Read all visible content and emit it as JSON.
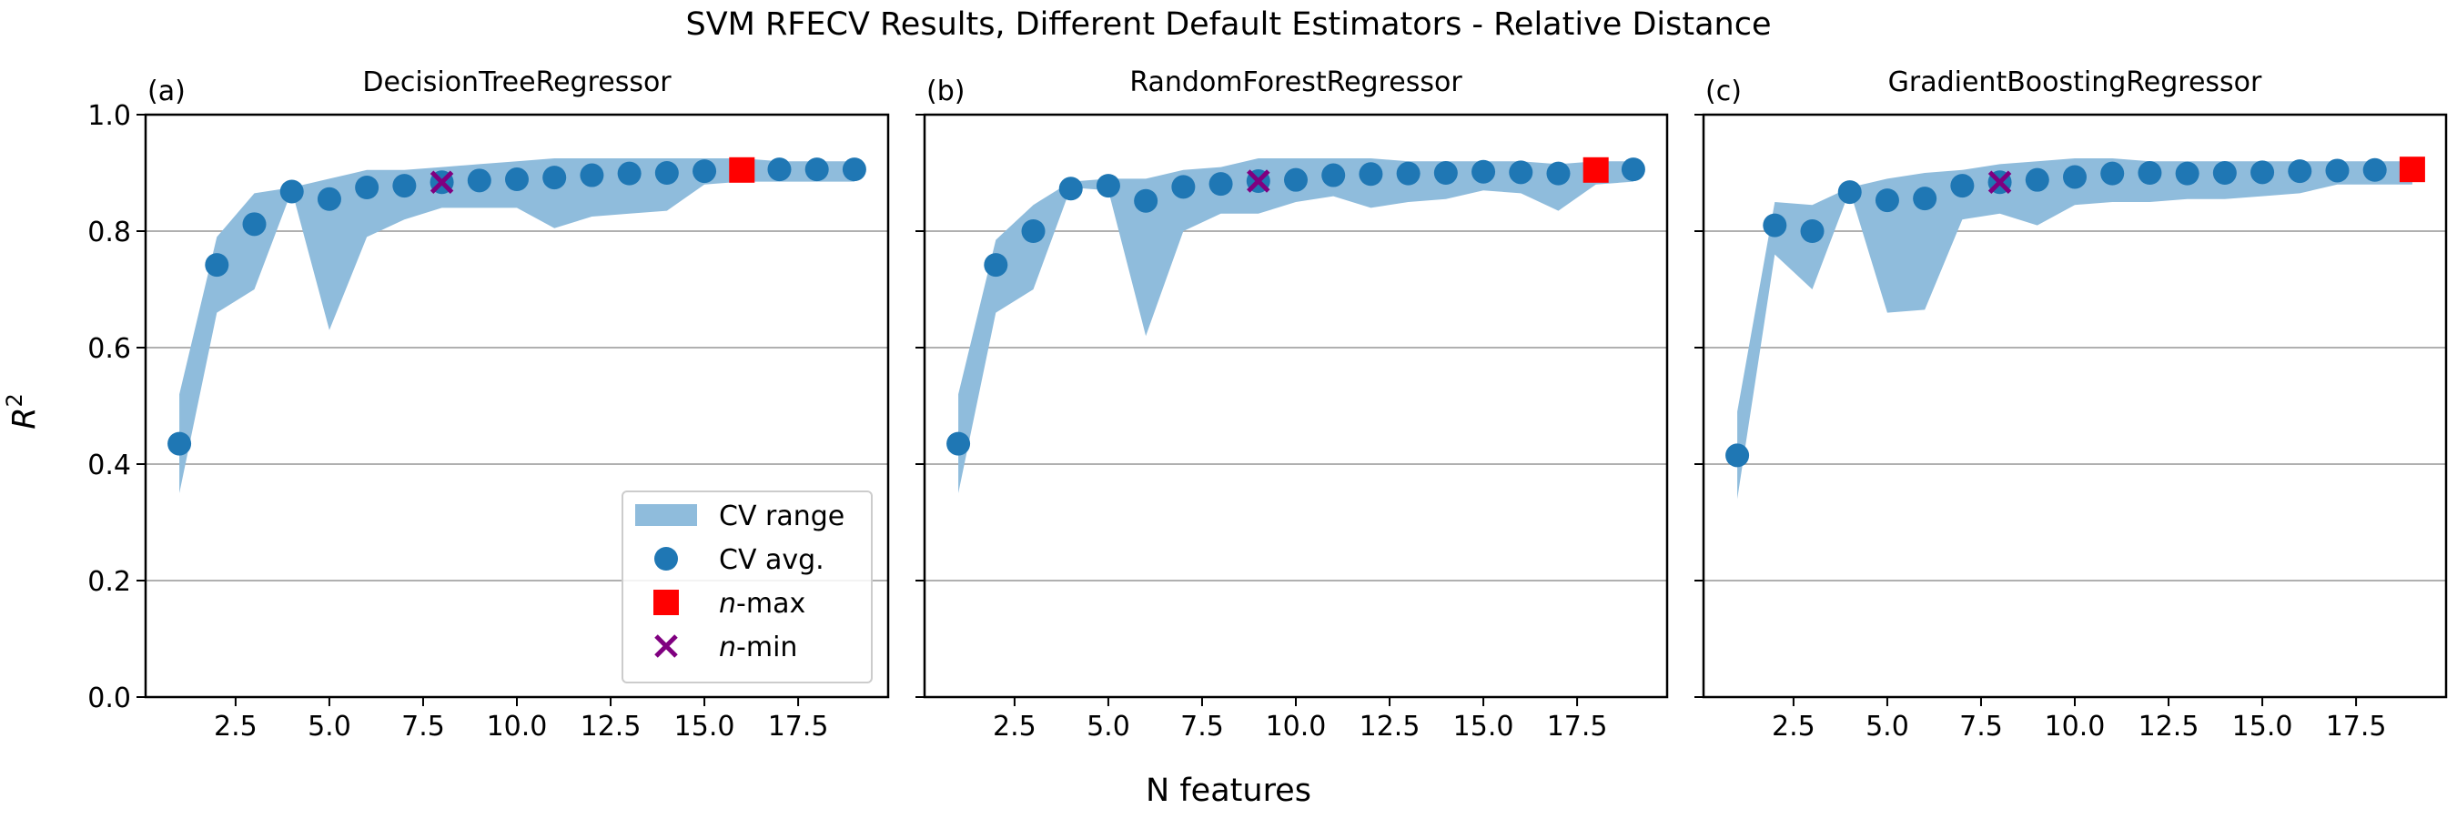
{
  "figure": {
    "title": "SVM RFECV Results, Different Default Estimators - Relative Distance",
    "xlabel": "N features",
    "ylabel": "R",
    "ylabel_sup": "2",
    "colors": {
      "band": "#8fbcdc",
      "avg": "#1f77b4",
      "nmax": "#ff0000",
      "nmin": "#800080",
      "grid": "#b0b0b0"
    }
  },
  "legend": {
    "placement": "lower-right",
    "panel": 0,
    "items": [
      {
        "key": "band",
        "label": "CV range"
      },
      {
        "key": "avg",
        "label": "CV avg."
      },
      {
        "key": "nmax",
        "italic": "n",
        "label": "-max"
      },
      {
        "key": "nmin",
        "italic": "n",
        "label": "-min"
      }
    ]
  },
  "chart_data": [
    {
      "type": "line",
      "letter": "(a)",
      "title": "DecisionTreeRegressor",
      "xlim": [
        0.1,
        19.9
      ],
      "ylim": [
        0,
        1.0
      ],
      "xticks": [
        "2.5",
        "5.0",
        "7.5",
        "10.0",
        "12.5",
        "15.0",
        "17.5"
      ],
      "yticks": [
        "0.0",
        "0.2",
        "0.4",
        "0.6",
        "0.8",
        "1.0"
      ],
      "grid": "y",
      "x": [
        1,
        2,
        3,
        4,
        5,
        6,
        7,
        8,
        9,
        10,
        11,
        12,
        13,
        14,
        15,
        16,
        17,
        18,
        19
      ],
      "avg": [
        0.435,
        0.742,
        0.812,
        0.868,
        0.855,
        0.875,
        0.878,
        0.884,
        0.887,
        0.889,
        0.892,
        0.896,
        0.899,
        0.9,
        0.903,
        0.905,
        0.906,
        0.906,
        0.906
      ],
      "low": [
        0.35,
        0.66,
        0.7,
        0.87,
        0.63,
        0.79,
        0.82,
        0.84,
        0.84,
        0.84,
        0.805,
        0.825,
        0.83,
        0.835,
        0.88,
        0.885,
        0.885,
        0.885,
        0.885
      ],
      "high": [
        0.52,
        0.79,
        0.865,
        0.875,
        0.89,
        0.905,
        0.905,
        0.91,
        0.915,
        0.92,
        0.925,
        0.925,
        0.925,
        0.925,
        0.925,
        0.925,
        0.92,
        0.92,
        0.92
      ],
      "nmax": {
        "x": 16,
        "y": 0.905
      },
      "nmin": {
        "x": 8,
        "y": 0.884
      }
    },
    {
      "type": "line",
      "letter": "(b)",
      "title": "RandomForestRegressor",
      "xlim": [
        0.1,
        19.9
      ],
      "ylim": [
        0,
        1.0
      ],
      "xticks": [
        "2.5",
        "5.0",
        "7.5",
        "10.0",
        "12.5",
        "15.0",
        "17.5"
      ],
      "yticks": [
        "0.0",
        "0.2",
        "0.4",
        "0.6",
        "0.8",
        "1.0"
      ],
      "grid": "y",
      "x": [
        1,
        2,
        3,
        4,
        5,
        6,
        7,
        8,
        9,
        10,
        11,
        12,
        13,
        14,
        15,
        16,
        17,
        18,
        19
      ],
      "avg": [
        0.435,
        0.742,
        0.8,
        0.873,
        0.878,
        0.852,
        0.876,
        0.881,
        0.886,
        0.888,
        0.896,
        0.898,
        0.899,
        0.9,
        0.902,
        0.901,
        0.899,
        0.905,
        0.906
      ],
      "low": [
        0.35,
        0.66,
        0.7,
        0.875,
        0.87,
        0.62,
        0.8,
        0.83,
        0.83,
        0.85,
        0.86,
        0.84,
        0.85,
        0.855,
        0.87,
        0.865,
        0.835,
        0.88,
        0.885
      ],
      "high": [
        0.52,
        0.785,
        0.845,
        0.885,
        0.89,
        0.89,
        0.905,
        0.91,
        0.925,
        0.925,
        0.925,
        0.925,
        0.92,
        0.92,
        0.92,
        0.92,
        0.915,
        0.92,
        0.92
      ],
      "nmax": {
        "x": 18,
        "y": 0.905
      },
      "nmin": {
        "x": 9,
        "y": 0.886
      }
    },
    {
      "type": "line",
      "letter": "(c)",
      "title": "GradientBoostingRegressor",
      "xlim": [
        0.1,
        19.9
      ],
      "ylim": [
        0,
        1.0
      ],
      "xticks": [
        "2.5",
        "5.0",
        "7.5",
        "10.0",
        "12.5",
        "15.0",
        "17.5"
      ],
      "yticks": [
        "0.0",
        "0.2",
        "0.4",
        "0.6",
        "0.8",
        "1.0"
      ],
      "grid": "y",
      "x": [
        1,
        2,
        3,
        4,
        5,
        6,
        7,
        8,
        9,
        10,
        11,
        12,
        13,
        14,
        15,
        16,
        17,
        18,
        19
      ],
      "avg": [
        0.415,
        0.81,
        0.8,
        0.867,
        0.853,
        0.856,
        0.878,
        0.884,
        0.888,
        0.893,
        0.899,
        0.9,
        0.899,
        0.9,
        0.901,
        0.903,
        0.904,
        0.905,
        0.906
      ],
      "low": [
        0.34,
        0.76,
        0.7,
        0.87,
        0.66,
        0.665,
        0.82,
        0.83,
        0.81,
        0.845,
        0.85,
        0.85,
        0.855,
        0.855,
        0.86,
        0.865,
        0.88,
        0.88,
        0.88
      ],
      "high": [
        0.49,
        0.85,
        0.845,
        0.875,
        0.89,
        0.9,
        0.905,
        0.915,
        0.92,
        0.925,
        0.925,
        0.92,
        0.92,
        0.92,
        0.92,
        0.92,
        0.92,
        0.92,
        0.92
      ],
      "nmax": {
        "x": 19,
        "y": 0.906
      },
      "nmin": {
        "x": 8,
        "y": 0.884
      }
    }
  ]
}
